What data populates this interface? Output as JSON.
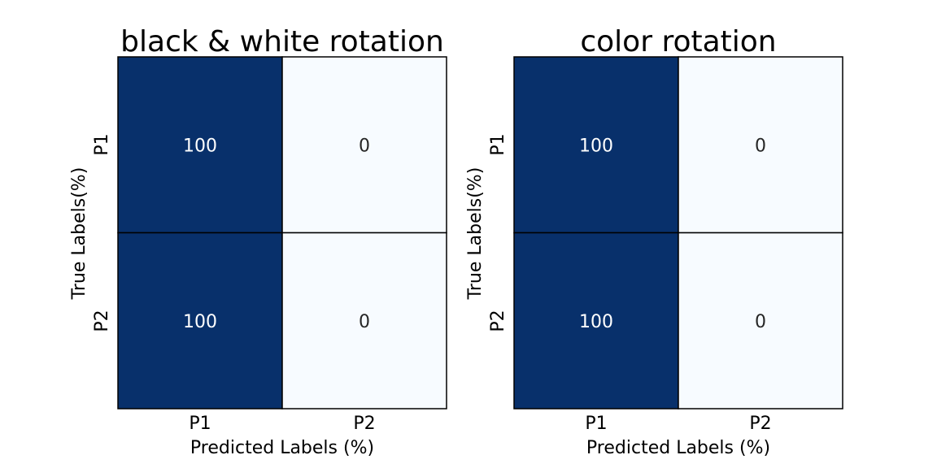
{
  "figure": {
    "dark_color": "#08306b",
    "light_color": "#f7fbff"
  },
  "chart_data": [
    {
      "type": "heatmap",
      "title": "black & white rotation",
      "xlabel": "Predicted Labels (%)",
      "ylabel": "True Labels(%)",
      "x_categories": [
        "P1",
        "P2"
      ],
      "y_categories": [
        "P1",
        "P2"
      ],
      "values": [
        [
          100,
          0
        ],
        [
          100,
          0
        ]
      ],
      "vmin": 0,
      "vmax": 100
    },
    {
      "type": "heatmap",
      "title": "color rotation",
      "xlabel": "Predicted Labels (%)",
      "ylabel": "True Labels(%)",
      "x_categories": [
        "P1",
        "P2"
      ],
      "y_categories": [
        "P1",
        "P2"
      ],
      "values": [
        [
          100,
          0
        ],
        [
          100,
          0
        ]
      ],
      "vmin": 0,
      "vmax": 100
    }
  ]
}
